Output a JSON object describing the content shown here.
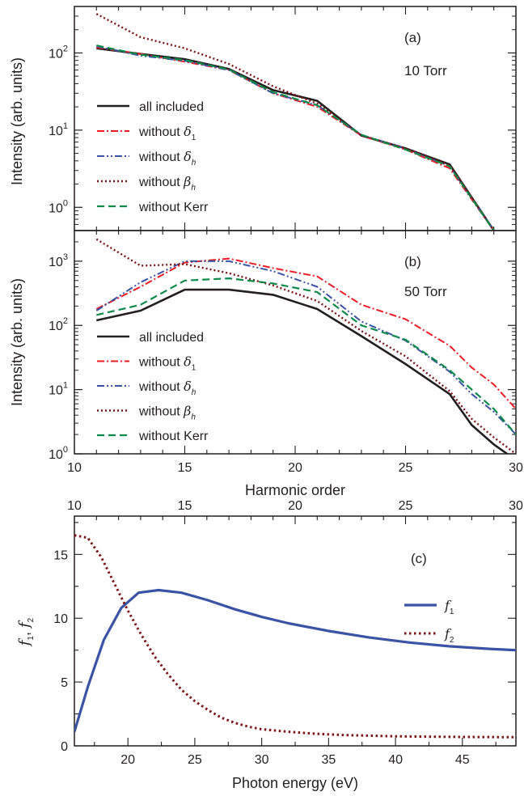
{
  "colors": {
    "black": "#231f20",
    "red": "#ed1c24",
    "blue": "#3a53a4",
    "darkred": "#7d1416",
    "green": "#0b8a4a"
  },
  "chart_data": [
    {
      "id": "a",
      "type": "line",
      "panel_label": "(a)",
      "condition": "10 Torr",
      "ylabel": "Intensity (arb. units)",
      "yscale": "log",
      "xlim": [
        10,
        30
      ],
      "ylim": [
        0.5,
        400
      ],
      "y_ticks": [
        {
          "v": 1,
          "e": "0"
        },
        {
          "v": 10,
          "e": "1"
        },
        {
          "v": 100,
          "e": "2"
        }
      ],
      "legend_position": "left",
      "x": [
        11,
        13,
        15,
        17,
        19,
        21,
        23,
        25,
        27,
        29
      ],
      "series": [
        {
          "name": "all included",
          "values": [
            115,
            97,
            83,
            62,
            33,
            24,
            8.5,
            5.8,
            3.6,
            0.5
          ]
        },
        {
          "name": "without δ1",
          "values": [
            118,
            97,
            77,
            60,
            30,
            20,
            8.5,
            5.6,
            3.2,
            0.5
          ]
        },
        {
          "name": "without δh",
          "values": [
            122,
            92,
            79,
            60,
            30,
            21,
            8.6,
            5.8,
            3.4,
            0.5
          ]
        },
        {
          "name": "without βh",
          "values": [
            320,
            160,
            115,
            72,
            37,
            22,
            8.6,
            5.8,
            3.5,
            0.5
          ]
        },
        {
          "name": "without Kerr",
          "values": [
            125,
            95,
            81,
            61,
            31,
            21,
            8.7,
            5.6,
            3.4,
            0.5
          ]
        }
      ]
    },
    {
      "id": "b",
      "type": "line",
      "panel_label": "(b)",
      "condition": "50 Torr",
      "ylabel": "Intensity (arb. units)",
      "xlabel": "Harmonic order",
      "yscale": "log",
      "xlim": [
        10,
        30
      ],
      "ylim": [
        1,
        3000
      ],
      "x_ticks": [
        "10",
        "15",
        "20",
        "25",
        "30"
      ],
      "y_ticks": [
        {
          "v": 1,
          "e": "0"
        },
        {
          "v": 10,
          "e": "1"
        },
        {
          "v": 100,
          "e": "2"
        },
        {
          "v": 1000,
          "e": "3"
        }
      ],
      "legend_position": "bottom-left",
      "x": [
        11,
        13,
        15,
        17,
        19,
        21,
        23,
        25,
        27,
        28,
        29,
        30
      ],
      "series": [
        {
          "name": "all included",
          "values": [
            120,
            170,
            360,
            360,
            300,
            180,
            68,
            25,
            8.5,
            2.8,
            1.4,
            0.8
          ]
        },
        {
          "name": "without δ1",
          "values": [
            180,
            400,
            950,
            1100,
            780,
            580,
            210,
            125,
            48,
            22,
            12,
            5
          ]
        },
        {
          "name": "without δh",
          "values": [
            170,
            470,
            1000,
            1000,
            700,
            400,
            115,
            58,
            19,
            8.5,
            4.5,
            2
          ]
        },
        {
          "name": "without βh",
          "values": [
            2200,
            850,
            900,
            650,
            420,
            240,
            82,
            33,
            9.5,
            3.5,
            1.8,
            1
          ]
        },
        {
          "name": "without Kerr",
          "values": [
            145,
            210,
            500,
            540,
            450,
            330,
            100,
            60,
            20,
            10,
            5,
            2
          ]
        }
      ]
    },
    {
      "id": "c",
      "type": "line",
      "panel_label": "(c)",
      "ylabel_parts": [
        "f",
        "1",
        ", ",
        "f",
        "2"
      ],
      "xlabel": "Photon energy (eV)",
      "xlim": [
        16,
        49
      ],
      "ylim": [
        0,
        18
      ],
      "x_ticks": [
        "20",
        "25",
        "30",
        "35",
        "40",
        "45"
      ],
      "y_ticks": [
        "0",
        "5",
        "10",
        "15"
      ],
      "top_axis": {
        "label": "Harmonic order",
        "ticks": [
          "10",
          "15",
          "20",
          "25",
          "30"
        ]
      },
      "legend_position": "right",
      "series": [
        {
          "name": "f1",
          "x": [
            16,
            17,
            18.2,
            19.5,
            20.8,
            22.3,
            24,
            26,
            28,
            30,
            32,
            35,
            38,
            41,
            44,
            47,
            49
          ],
          "y": [
            1.1,
            4.6,
            8.3,
            10.8,
            12.0,
            12.2,
            12.0,
            11.4,
            10.7,
            10.1,
            9.6,
            9.0,
            8.5,
            8.1,
            7.8,
            7.6,
            7.5
          ]
        },
        {
          "name": "f2",
          "x": [
            16,
            17,
            18,
            19,
            20,
            21,
            22,
            23,
            24,
            25,
            26,
            27,
            28,
            29,
            30,
            32,
            34,
            36,
            38,
            40,
            42,
            45,
            49
          ],
          "y": [
            16.5,
            16.3,
            14.8,
            12.7,
            10.6,
            8.7,
            7.0,
            5.6,
            4.4,
            3.5,
            2.8,
            2.2,
            1.8,
            1.5,
            1.3,
            1.1,
            0.95,
            0.85,
            0.8,
            0.75,
            0.72,
            0.7,
            0.68
          ]
        }
      ]
    }
  ]
}
